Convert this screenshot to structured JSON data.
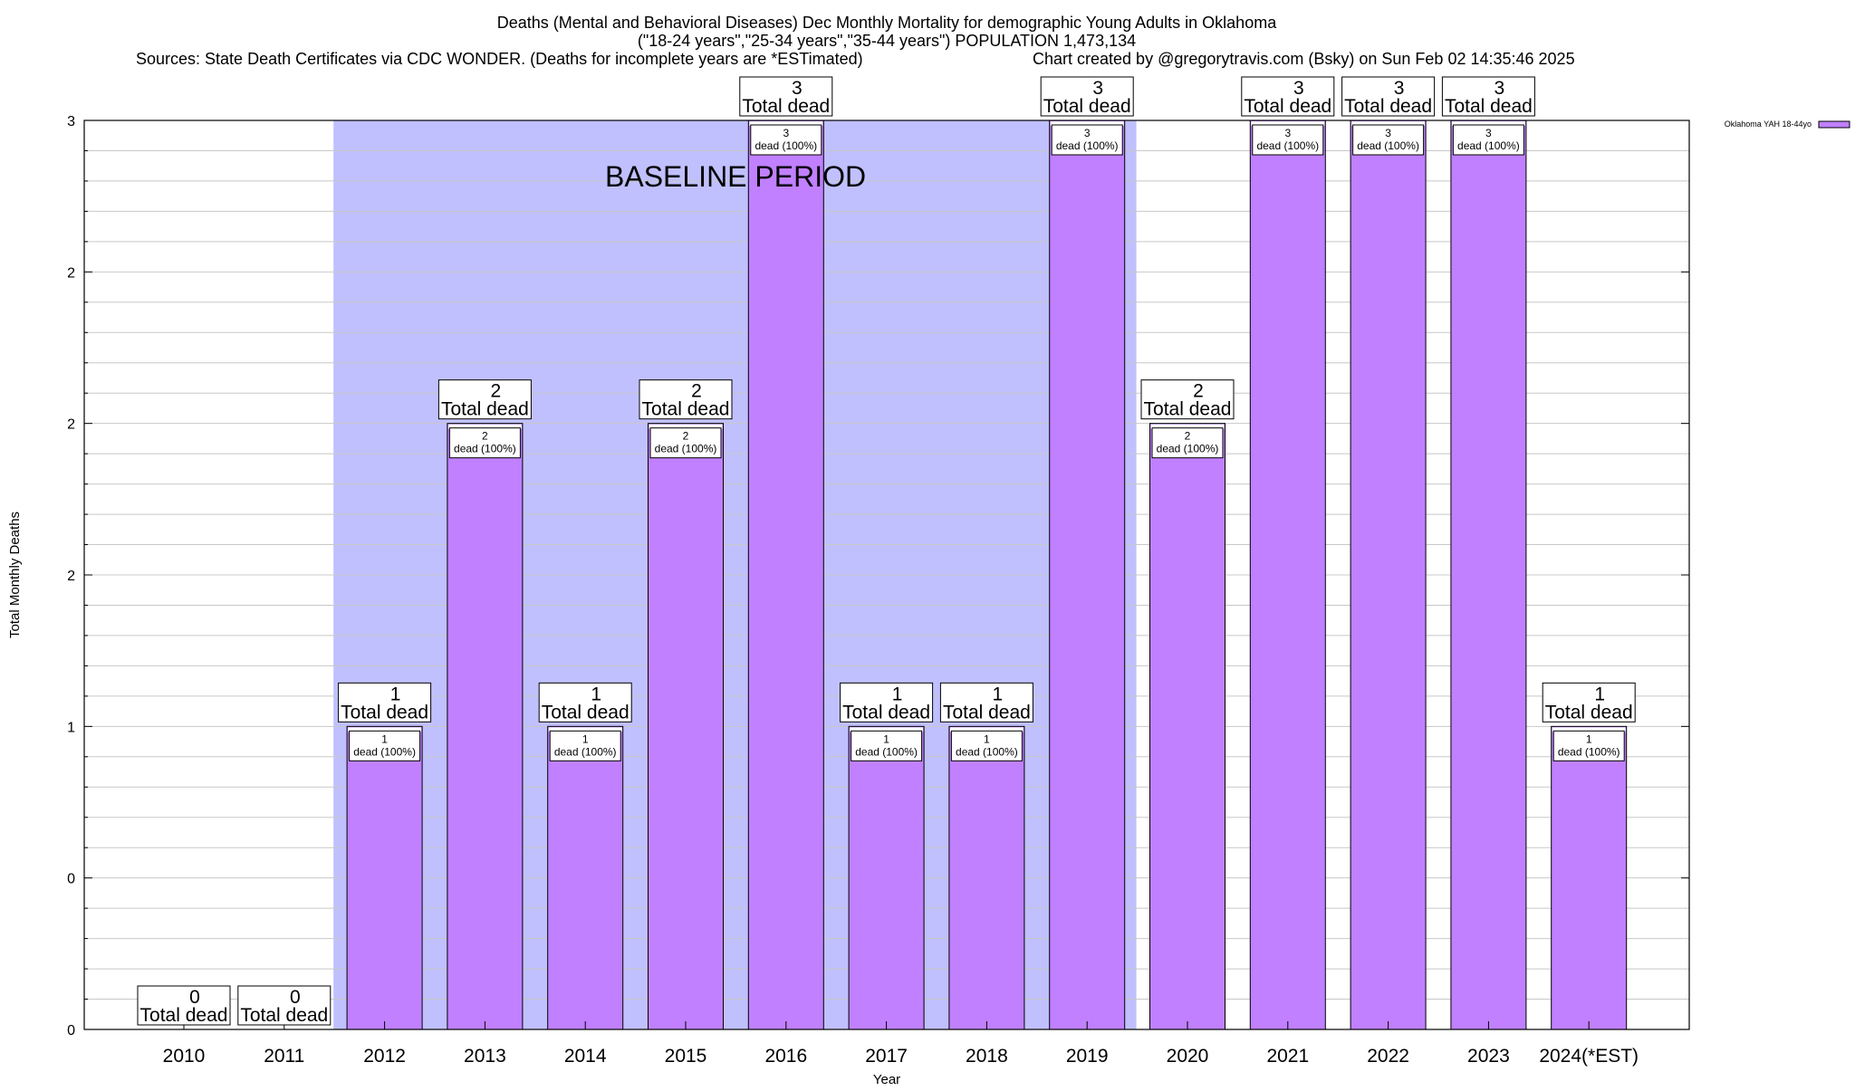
{
  "chart_data": {
    "type": "bar",
    "title_lines": [
      "Deaths (Mental and Behavioral Diseases) Dec Monthly Mortality for demographic Young Adults in Oklahoma",
      "(\"18-24 years\",\"25-34 years\",\"35-44 years\") POPULATION 1,473,134"
    ],
    "source_text": "Sources: State Death Certificates via CDC WONDER. (Deaths for incomplete years are *ESTimated)",
    "credit_text": "Chart created by @gregorytravis.com (Bsky) on Sun Feb 02 14:35:46 2025",
    "xlabel": "Year",
    "ylabel": "Total Monthly Deaths",
    "legend": {
      "label": "Oklahoma YAH 18-44yo",
      "placement": "top-right",
      "color": "#c080ff"
    },
    "ytick_labels": [
      "0",
      "0",
      "1",
      "2",
      "2",
      "2",
      "3"
    ],
    "ylim": [
      0,
      3
    ],
    "grid": true,
    "baseline_label": "BASELINE PERIOD",
    "baseline_range": [
      "2012",
      "2019"
    ],
    "categories": [
      "2010",
      "2011",
      "2012",
      "2013",
      "2014",
      "2015",
      "2016",
      "2017",
      "2018",
      "2019",
      "2020",
      "2021",
      "2022",
      "2023",
      "2024(*EST)"
    ],
    "values": [
      0,
      0,
      1,
      2,
      1,
      2,
      3,
      1,
      1,
      3,
      2,
      3,
      3,
      3,
      1
    ],
    "top_label_suffix": "Total dead",
    "inner_label_suffix": "dead (100%)",
    "colors": {
      "bar": "#c080ff",
      "baseline": "#c0c0ff",
      "grid": "#c8c8c8"
    }
  }
}
